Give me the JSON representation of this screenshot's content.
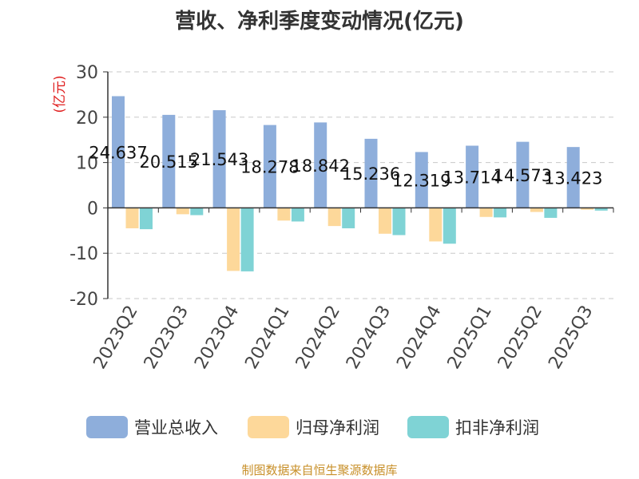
{
  "title": "营收、净利季度变动情况(亿元)",
  "source_note": "制图数据来自恒生聚源数据库",
  "chart_data": {
    "type": "bar",
    "title": "营收、净利季度变动情况(亿元)",
    "ylabel": "(亿元)",
    "xlabel": "",
    "categories": [
      "2023Q2",
      "2023Q3",
      "2023Q4",
      "2024Q1",
      "2024Q2",
      "2024Q3",
      "2024Q4",
      "2025Q1",
      "2025Q2",
      "2025Q3"
    ],
    "ylim": [
      -20,
      30
    ],
    "yticks": [
      30,
      20,
      10,
      0,
      -10,
      -20
    ],
    "grid": true,
    "legend_position": "bottom",
    "series": [
      {
        "name": "营业总收入",
        "color": "#8eaedb",
        "values": [
          24.637,
          20.515,
          21.543,
          18.278,
          18.842,
          15.236,
          12.319,
          13.714,
          14.573,
          13.423
        ],
        "labels": [
          "24.637",
          "20.515",
          "21.543",
          "18.278",
          "18.842",
          "15.236",
          "12.319",
          "13.714",
          "14.573",
          "13.423"
        ]
      },
      {
        "name": "归母净利润",
        "color": "#fdd89a",
        "values": [
          -4.5,
          -1.4,
          -13.9,
          -2.8,
          -4.0,
          -5.7,
          -7.4,
          -2.0,
          -0.9,
          -0.4
        ]
      },
      {
        "name": "扣非净利润",
        "color": "#7fd3d5",
        "values": [
          -4.7,
          -1.6,
          -14.0,
          -3.0,
          -4.5,
          -6.0,
          -7.9,
          -2.1,
          -2.2,
          -0.6
        ]
      }
    ]
  }
}
